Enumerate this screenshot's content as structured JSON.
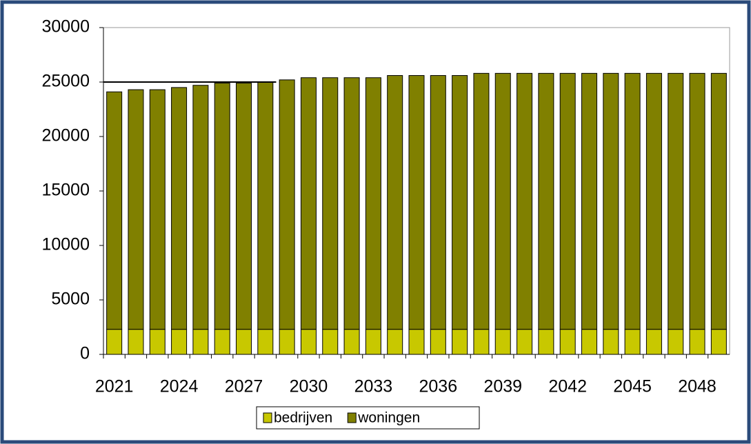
{
  "chart_data": {
    "type": "stacked_bar",
    "categories": [
      "2021",
      null,
      null,
      "2024",
      null,
      null,
      "2027",
      null,
      null,
      "2030",
      null,
      null,
      "2033",
      null,
      null,
      "2036",
      null,
      null,
      "2039",
      null,
      null,
      "2042",
      null,
      null,
      "2045",
      null,
      null,
      "2048",
      null
    ],
    "series": [
      {
        "name": "bedrijven",
        "color": "#c8c800",
        "values": [
          2300,
          2300,
          2300,
          2300,
          2300,
          2300,
          2300,
          2300,
          2300,
          2300,
          2300,
          2300,
          2300,
          2300,
          2300,
          2300,
          2300,
          2300,
          2300,
          2300,
          2300,
          2300,
          2300,
          2300,
          2300,
          2300,
          2300,
          2300,
          2300
        ]
      },
      {
        "name": "woningen",
        "color": "#808000",
        "values": [
          21800,
          22000,
          22000,
          22200,
          22400,
          22600,
          22600,
          22700,
          22900,
          23100,
          23100,
          23100,
          23100,
          23300,
          23300,
          23300,
          23300,
          23500,
          23500,
          23500,
          23500,
          23500,
          23500,
          23500,
          23500,
          23500,
          23500,
          23500,
          23500
        ]
      }
    ],
    "reference_line": 25000,
    "ylim": [
      0,
      30000
    ],
    "yticks": [
      0,
      5000,
      10000,
      15000,
      20000,
      25000,
      30000
    ],
    "legend": "bottom"
  }
}
